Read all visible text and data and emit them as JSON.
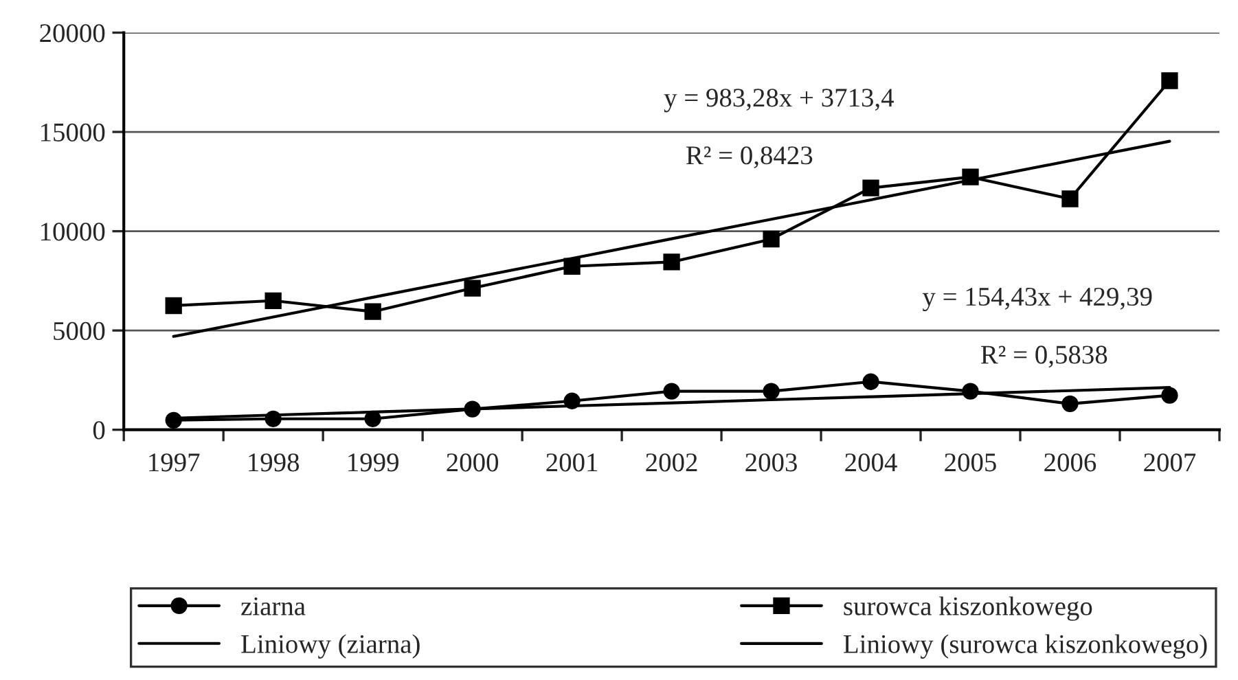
{
  "chart_data": {
    "type": "line",
    "categories": [
      "1997",
      "1998",
      "1999",
      "2000",
      "2001",
      "2002",
      "2003",
      "2004",
      "2005",
      "2006",
      "2007"
    ],
    "series": [
      {
        "name": "ziarna",
        "color": "#000000",
        "marker": "circle",
        "values": [
          480,
          550,
          550,
          1040,
          1450,
          1940,
          1940,
          2420,
          1940,
          1310,
          1730
        ]
      },
      {
        "name": "surowca kiszonkowego",
        "color": "#000000",
        "marker": "square",
        "values": [
          6250,
          6500,
          5950,
          7130,
          8230,
          8450,
          9600,
          12180,
          12730,
          11630,
          17580
        ]
      },
      {
        "name": "Liniowy (ziarna)",
        "color": "#000000",
        "marker": "none",
        "values": [
          580,
          740,
          890,
          1050,
          1200,
          1350,
          1510,
          1660,
          1820,
          1970,
          2130
        ]
      },
      {
        "name": "Liniowy (surowca kiszonkowego)",
        "color": "#000000",
        "marker": "none",
        "values": [
          4700,
          5680,
          6670,
          7650,
          8630,
          9620,
          10600,
          11580,
          12570,
          13550,
          14530
        ]
      }
    ],
    "ylim": [
      0,
      20000
    ],
    "yticks": [
      0,
      5000,
      10000,
      15000,
      20000
    ],
    "grid": "y",
    "legend": "bottom",
    "line_style": "solid",
    "annotations": [
      "y = 983,28x + 3713,4",
      "R² = 0,8423",
      "y = 154,43x + 429,39",
      "R² = 0,5838"
    ]
  }
}
